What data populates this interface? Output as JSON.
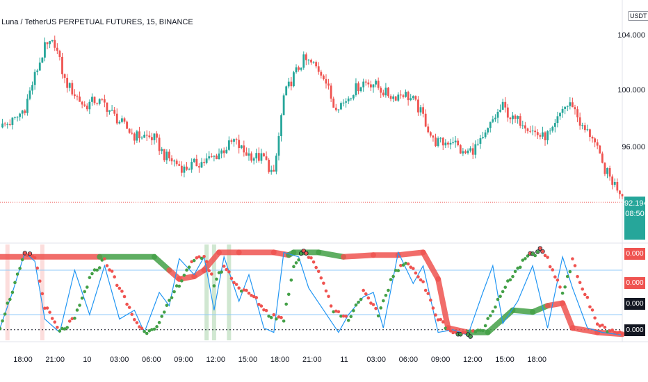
{
  "chart_data": [
    {
      "type": "candlestick",
      "title": "Luna / TetherUS PERPETUAL FUTURES, 15, BINANCE",
      "quote_currency": "USDT",
      "y_axis_labels": [
        "104.000",
        "100.000",
        "96.000"
      ],
      "last_price": "92.194",
      "countdown": "08:50",
      "ylim": [
        91,
        106
      ],
      "close_path": [
        [
          0,
          97.6
        ],
        [
          6,
          98.2
        ],
        [
          10,
          99.2
        ],
        [
          14,
          101.8
        ],
        [
          18,
          104.1
        ],
        [
          22,
          104.5
        ],
        [
          26,
          101.4
        ],
        [
          30,
          100.3
        ],
        [
          34,
          99.3
        ],
        [
          38,
          99.8
        ],
        [
          42,
          99.5
        ],
        [
          46,
          98.5
        ],
        [
          50,
          97.7
        ],
        [
          54,
          96.9
        ],
        [
          58,
          96.9
        ],
        [
          62,
          96.7
        ],
        [
          66,
          95.3
        ],
        [
          70,
          94.8
        ],
        [
          74,
          94.2
        ],
        [
          78,
          94.6
        ],
        [
          82,
          94.8
        ],
        [
          86,
          95.2
        ],
        [
          90,
          95.8
        ],
        [
          94,
          96.5
        ],
        [
          98,
          95.6
        ],
        [
          102,
          95.2
        ],
        [
          106,
          95.1
        ],
        [
          110,
          93.6
        ],
        [
          114,
          100.1
        ],
        [
          118,
          101.8
        ],
        [
          122,
          103.1
        ],
        [
          126,
          102.7
        ],
        [
          130,
          101.9
        ],
        [
          134,
          99.4
        ],
        [
          138,
          99.6
        ],
        [
          142,
          100.6
        ],
        [
          146,
          101.3
        ],
        [
          150,
          101.2
        ],
        [
          154,
          100.5
        ],
        [
          158,
          100.1
        ],
        [
          162,
          100.4
        ],
        [
          166,
          99.8
        ],
        [
          170,
          98.5
        ],
        [
          174,
          96.5
        ],
        [
          178,
          96.3
        ],
        [
          182,
          96.6
        ],
        [
          186,
          95.4
        ],
        [
          190,
          95.8
        ],
        [
          194,
          96.5
        ],
        [
          198,
          98.2
        ],
        [
          202,
          99.3
        ],
        [
          206,
          98.2
        ],
        [
          210,
          98.1
        ],
        [
          214,
          97.3
        ],
        [
          218,
          96.8
        ],
        [
          222,
          97.2
        ],
        [
          226,
          99.2
        ],
        [
          230,
          99.5
        ],
        [
          234,
          97.5
        ],
        [
          238,
          96.9
        ],
        [
          242,
          94.5
        ],
        [
          246,
          93.2
        ],
        [
          250,
          92.2
        ]
      ],
      "x_categories": [
        "18:00",
        "21:00",
        "10",
        "03:00",
        "06:00",
        "09:00",
        "12:00",
        "15:00",
        "18:00",
        "21:00",
        "11",
        "03:00",
        "06:00",
        "09:00",
        "12:00",
        "15:00",
        "18:00"
      ]
    },
    {
      "type": "line",
      "ylim": [
        0,
        1
      ],
      "value_labels": [
        "0.000",
        "0.000",
        "0.000",
        "0.000"
      ],
      "series": [
        {
          "name": "",
          "color": "#ef5350",
          "style": "thick-band-slow"
        },
        {
          "name": "",
          "color": "#2196f3",
          "style": "fast-oscillator"
        },
        {
          "name": "",
          "color": "#43a047",
          "style": "signal-dotted"
        }
      ],
      "slow_band": [
        [
          0,
          0.9
        ],
        [
          40,
          0.9
        ],
        [
          62,
          0.9
        ],
        [
          68,
          0.75
        ],
        [
          72,
          0.65
        ],
        [
          78,
          0.68
        ],
        [
          82,
          0.75
        ],
        [
          88,
          0.95
        ],
        [
          96,
          0.95
        ],
        [
          110,
          0.95
        ],
        [
          116,
          0.92
        ],
        [
          118,
          0.95
        ],
        [
          128,
          0.95
        ],
        [
          138,
          0.9
        ],
        [
          150,
          0.92
        ],
        [
          160,
          0.92
        ],
        [
          170,
          0.95
        ],
        [
          176,
          0.65
        ],
        [
          180,
          0.1
        ],
        [
          188,
          0.05
        ],
        [
          196,
          0.05
        ],
        [
          206,
          0.3
        ],
        [
          214,
          0.28
        ],
        [
          220,
          0.35
        ],
        [
          226,
          0.38
        ],
        [
          230,
          0.1
        ],
        [
          240,
          0.05
        ],
        [
          250,
          0.03
        ]
      ],
      "osc_path": [
        [
          0,
          0.1
        ],
        [
          5,
          0.5
        ],
        [
          10,
          0.95
        ],
        [
          14,
          0.85
        ],
        [
          18,
          0.2
        ],
        [
          24,
          0.05
        ],
        [
          30,
          0.75
        ],
        [
          36,
          0.25
        ],
        [
          42,
          0.8
        ],
        [
          48,
          0.2
        ],
        [
          54,
          0.3
        ],
        [
          58,
          0.05
        ],
        [
          64,
          0.5
        ],
        [
          68,
          0.35
        ],
        [
          72,
          0.88
        ],
        [
          78,
          0.7
        ],
        [
          82,
          0.9
        ],
        [
          86,
          0.3
        ],
        [
          90,
          0.9
        ],
        [
          96,
          0.4
        ],
        [
          100,
          0.7
        ],
        [
          106,
          0.1
        ],
        [
          110,
          0.05
        ],
        [
          114,
          0.95
        ],
        [
          120,
          0.9
        ],
        [
          124,
          0.55
        ],
        [
          130,
          0.3
        ],
        [
          136,
          0.05
        ],
        [
          140,
          0.25
        ],
        [
          146,
          0.45
        ],
        [
          150,
          0.5
        ],
        [
          154,
          0.1
        ],
        [
          160,
          0.95
        ],
        [
          166,
          0.6
        ],
        [
          170,
          0.8
        ],
        [
          176,
          0.05
        ],
        [
          182,
          0.08
        ],
        [
          188,
          0.02
        ],
        [
          194,
          0.5
        ],
        [
          198,
          0.8
        ],
        [
          202,
          0.15
        ],
        [
          208,
          0.4
        ],
        [
          214,
          0.8
        ],
        [
          220,
          0.1
        ],
        [
          226,
          0.9
        ],
        [
          230,
          0.55
        ],
        [
          236,
          0.1
        ],
        [
          242,
          0.05
        ],
        [
          250,
          0.02
        ]
      ],
      "stoch_path": [
        [
          0,
          0.12
        ],
        [
          6,
          0.6
        ],
        [
          10,
          0.92
        ],
        [
          14,
          0.9
        ],
        [
          18,
          0.35
        ],
        [
          24,
          0.05
        ],
        [
          30,
          0.2
        ],
        [
          36,
          0.65
        ],
        [
          42,
          0.88
        ],
        [
          48,
          0.55
        ],
        [
          54,
          0.2
        ],
        [
          58,
          0.05
        ],
        [
          64,
          0.15
        ],
        [
          70,
          0.5
        ],
        [
          76,
          0.8
        ],
        [
          82,
          0.92
        ],
        [
          86,
          0.6
        ],
        [
          90,
          0.8
        ],
        [
          96,
          0.55
        ],
        [
          102,
          0.45
        ],
        [
          108,
          0.25
        ],
        [
          114,
          0.2
        ],
        [
          118,
          0.8
        ],
        [
          122,
          0.98
        ],
        [
          128,
          0.75
        ],
        [
          134,
          0.3
        ],
        [
          140,
          0.2
        ],
        [
          146,
          0.5
        ],
        [
          152,
          0.25
        ],
        [
          158,
          0.7
        ],
        [
          164,
          0.85
        ],
        [
          170,
          0.6
        ],
        [
          176,
          0.2
        ],
        [
          182,
          0.05
        ],
        [
          188,
          0.02
        ],
        [
          194,
          0.1
        ],
        [
          200,
          0.4
        ],
        [
          206,
          0.7
        ],
        [
          212,
          0.9
        ],
        [
          218,
          0.98
        ],
        [
          222,
          0.75
        ],
        [
          226,
          0.5
        ],
        [
          230,
          0.85
        ],
        [
          234,
          0.55
        ],
        [
          240,
          0.15
        ],
        [
          246,
          0.05
        ],
        [
          250,
          0.02
        ]
      ]
    }
  ],
  "ui": {
    "title": "Luna / TetherUS PERPETUAL FUTURES, 15, BINANCE",
    "usdt": "USDT",
    "last_price": "92.194",
    "countdown": "08:50",
    "colors": {
      "up": "#26a69a",
      "down": "#ef5350",
      "green": "#43a047",
      "blue": "#2196f3",
      "grid": "#e0e3eb"
    }
  }
}
